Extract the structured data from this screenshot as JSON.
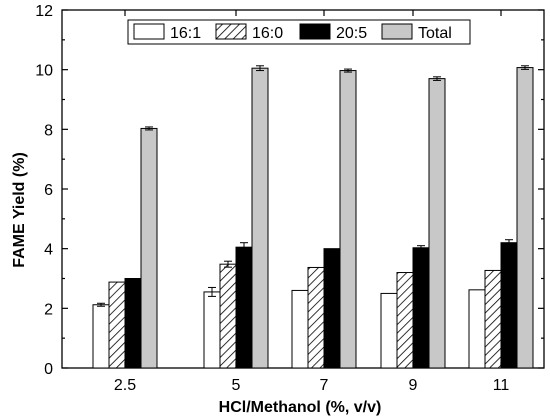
{
  "chart_data": {
    "type": "bar",
    "title": "",
    "xlabel": "HCl/Methanol (%, v/v)",
    "ylabel": "FAME Yield (%)",
    "categories": [
      "2.5",
      "5",
      "7",
      "9",
      "11"
    ],
    "ylim": [
      0,
      12
    ],
    "yticks": [
      "0",
      "2",
      "4",
      "6",
      "8",
      "10",
      "12"
    ],
    "legend_position": "top",
    "series": [
      {
        "name": "16:1",
        "values": [
          2.12,
          2.55,
          2.6,
          2.5,
          2.62
        ],
        "errors": [
          0.05,
          0.15,
          0.0,
          0.0,
          0.0
        ],
        "fill": "white",
        "color": "#ffffff"
      },
      {
        "name": "16:0",
        "values": [
          2.88,
          3.48,
          3.37,
          3.2,
          3.27
        ],
        "errors": [
          0.0,
          0.1,
          0.0,
          0.0,
          0.0
        ],
        "fill": "hatch",
        "color": "#ffffff"
      },
      {
        "name": "20:5",
        "values": [
          3.0,
          4.05,
          4.0,
          4.03,
          4.2
        ],
        "errors": [
          0.0,
          0.15,
          0.0,
          0.07,
          0.1
        ],
        "fill": "solid",
        "color": "#000000"
      },
      {
        "name": "Total",
        "values": [
          8.03,
          10.05,
          9.97,
          9.7,
          10.07
        ],
        "errors": [
          0.05,
          0.08,
          0.05,
          0.06,
          0.06
        ],
        "fill": "solid",
        "color": "#c8c8c8"
      }
    ]
  }
}
